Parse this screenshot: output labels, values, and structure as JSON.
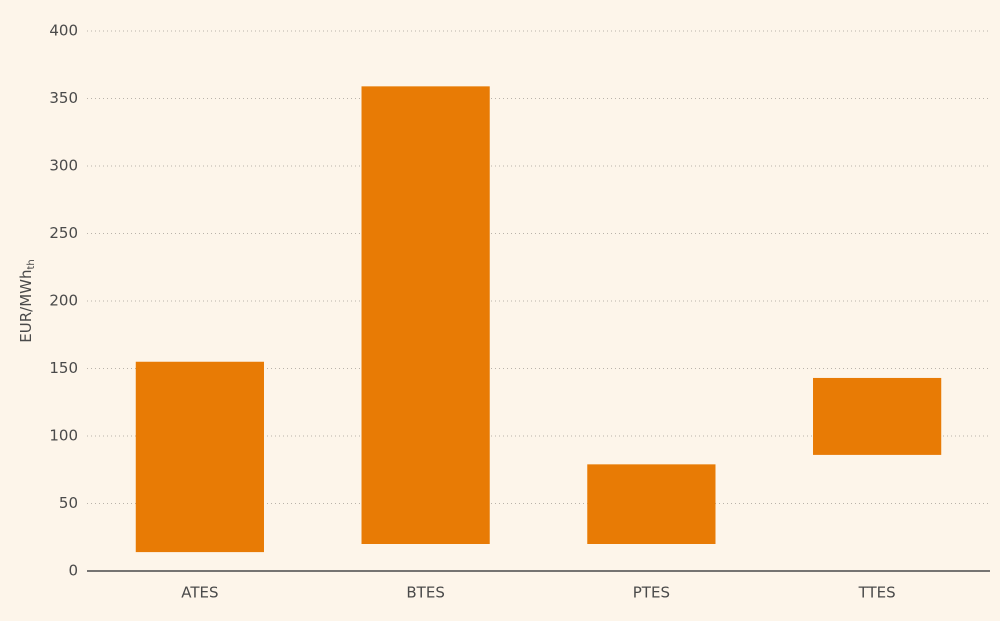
{
  "chart_data": {
    "type": "range_bar",
    "y_label": "EUR/MWh",
    "y_label_subscript": "th",
    "categories": [
      "ATES",
      "BTES",
      "PTES",
      "TTES"
    ],
    "low": [
      14,
      20,
      20,
      86
    ],
    "high": [
      155,
      359,
      79,
      143
    ],
    "color": "#e87b05",
    "ylim": [
      0,
      400
    ],
    "yticks": [
      0,
      50,
      100,
      150,
      200,
      250,
      300,
      350,
      400
    ],
    "grid": true
  }
}
